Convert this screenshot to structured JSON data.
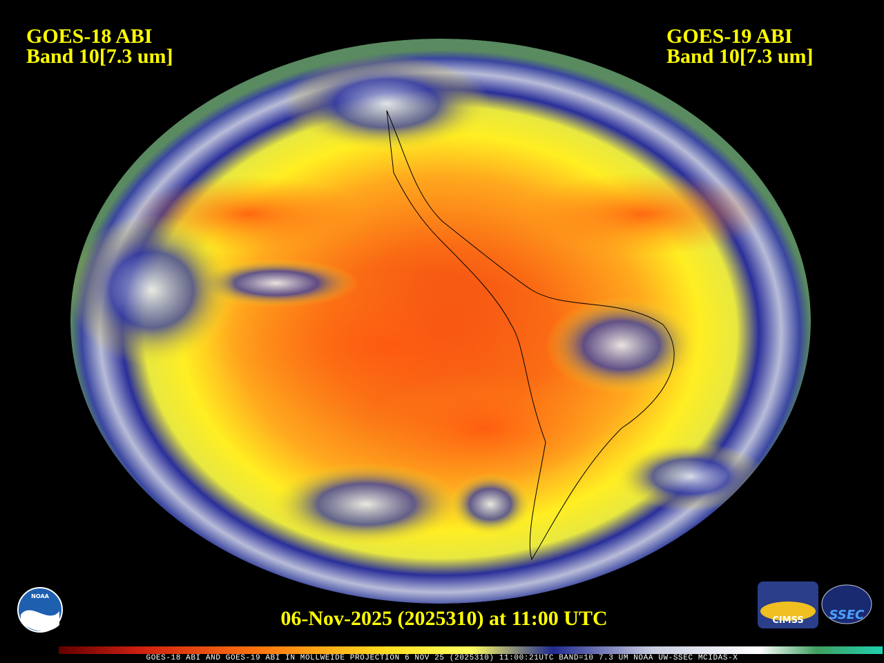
{
  "header": {
    "left": {
      "line1": "GOES-18 ABI",
      "line2": "Band 10[7.3 um]"
    },
    "right": {
      "line1": "GOES-19 ABI",
      "line2": "Band 10[7.3 um]"
    }
  },
  "timestamp": "06-Nov-2025 (2025310) at 11:00 UTC",
  "footer": "GOES-18 ABI AND GOES-19 ABI IN MOLLWEIDE PROJECTION 6 NOV 25 (2025310) 11:00:21UTC BAND=10 7.3 UM NOAA UW-SSEC MCIDAS-X",
  "logos": {
    "noaa": "NOAA",
    "cimss": "CIMSS",
    "ssec": "SSEC"
  }
}
